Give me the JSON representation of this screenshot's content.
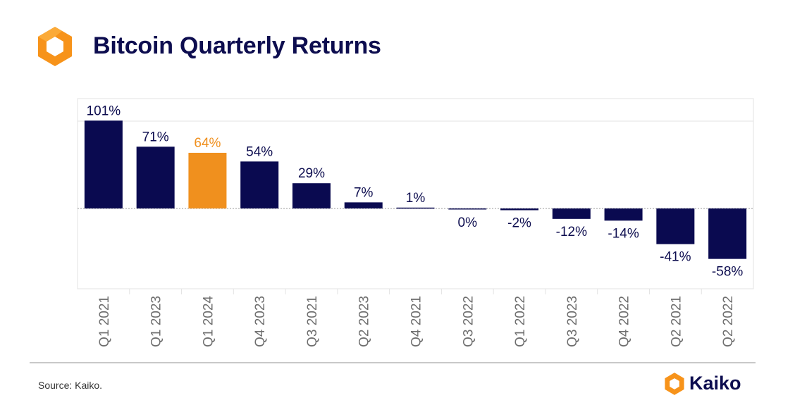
{
  "header": {
    "title": "Bitcoin Quarterly Returns",
    "logo_icon": "kaiko-hexagon-icon"
  },
  "colors": {
    "bar_default": "#0a0a50",
    "bar_highlight": "#f0901e",
    "label_default": "#0d0d4f",
    "label_highlight": "#f0901e",
    "axis_text": "#6e6e6e",
    "grid": "#e3e3e3",
    "brand_orange": "#f7931a",
    "brand_navy": "#0d0d4f"
  },
  "chart_data": {
    "type": "bar",
    "title": "Bitcoin Quarterly Returns",
    "xlabel": "",
    "ylabel": "",
    "ylim": [
      -85,
      100
    ],
    "grid": true,
    "categories": [
      "Q1 2021",
      "Q1 2023",
      "Q1 2024",
      "Q4 2023",
      "Q3 2021",
      "Q2 2023",
      "Q4 2021",
      "Q3 2022",
      "Q1 2022",
      "Q3 2023",
      "Q4 2022",
      "Q2 2021",
      "Q2 2022"
    ],
    "values": [
      101,
      71,
      64,
      54,
      29,
      7,
      1,
      0,
      -2,
      -12,
      -14,
      -41,
      -58
    ],
    "data_labels": [
      "101%",
      "71%",
      "64%",
      "54%",
      "29%",
      "7%",
      "1%",
      "0%",
      "-2%",
      "-12%",
      "-14%",
      "-41%",
      "-58%"
    ],
    "highlight_category": "Q1 2024"
  },
  "footer": {
    "source": "Source: Kaiko.",
    "brand_name": "Kaiko"
  }
}
